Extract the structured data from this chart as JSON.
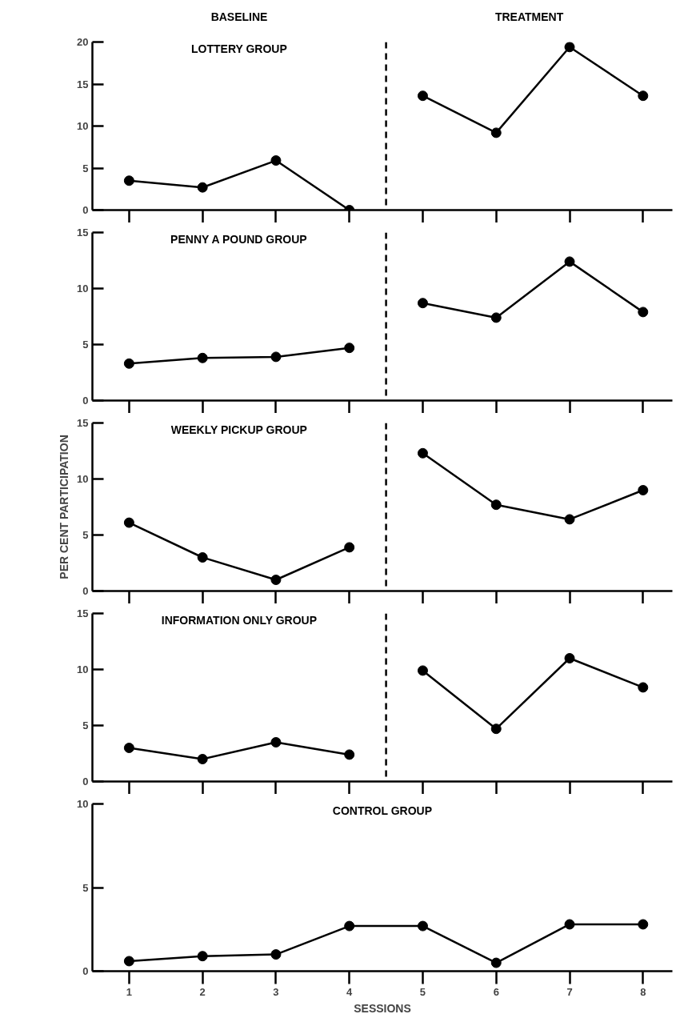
{
  "chart_data": [
    {
      "type": "line",
      "title": "LOTTERY GROUP",
      "annotations": [
        "BASELINE",
        "TREATMENT"
      ],
      "marker": "circle",
      "line_style": "solid",
      "tick_labels": "y",
      "xlim": [
        0.5,
        8.4
      ],
      "xticks": [
        {
          "value": 1,
          "label": null
        },
        {
          "value": 2,
          "label": null
        },
        {
          "value": 3,
          "label": null
        },
        {
          "value": 4,
          "label": null
        },
        {
          "value": 5,
          "label": null
        },
        {
          "value": 6,
          "label": null
        },
        {
          "value": 7,
          "label": null
        },
        {
          "value": 8,
          "label": null
        }
      ],
      "ylim": [
        0,
        20
      ],
      "yticks": [
        0,
        5,
        10,
        15,
        20
      ],
      "ref_lines": [
        {
          "axis": "x",
          "value": 4.5,
          "color": "#000000",
          "line_style": "dashed"
        }
      ],
      "series": [
        {
          "color": "#000000",
          "x": [
            1,
            2,
            3,
            4
          ],
          "values": [
            3.5,
            2.7,
            5.9,
            0
          ]
        },
        {
          "color": "#000000",
          "x": [
            5,
            6,
            7,
            8
          ],
          "values": [
            13.6,
            9.2,
            19.4,
            13.6
          ]
        }
      ]
    },
    {
      "type": "line",
      "title": "PENNY A POUND GROUP",
      "marker": "circle",
      "line_style": "solid",
      "tick_labels": "y",
      "xlim": [
        0.5,
        8.4
      ],
      "xticks": [
        {
          "value": 1,
          "label": null
        },
        {
          "value": 2,
          "label": null
        },
        {
          "value": 3,
          "label": null
        },
        {
          "value": 4,
          "label": null
        },
        {
          "value": 5,
          "label": null
        },
        {
          "value": 6,
          "label": null
        },
        {
          "value": 7,
          "label": null
        },
        {
          "value": 8,
          "label": null
        }
      ],
      "ylim": [
        0,
        15
      ],
      "yticks": [
        0,
        5,
        10,
        15
      ],
      "ref_lines": [
        {
          "axis": "x",
          "value": 4.5,
          "color": "#000000",
          "line_style": "dashed"
        }
      ],
      "series": [
        {
          "color": "#000000",
          "x": [
            1,
            2,
            3,
            4
          ],
          "values": [
            3.3,
            3.8,
            3.9,
            4.7
          ]
        },
        {
          "color": "#000000",
          "x": [
            5,
            6,
            7,
            8
          ],
          "values": [
            8.7,
            7.4,
            12.4,
            7.9
          ]
        }
      ]
    },
    {
      "type": "line",
      "title": "WEEKLY PICKUP GROUP",
      "ylabel": "PER CENT PARTICIPATION",
      "marker": "circle",
      "line_style": "solid",
      "tick_labels": "y",
      "xlim": [
        0.5,
        8.4
      ],
      "xticks": [
        {
          "value": 1,
          "label": null
        },
        {
          "value": 2,
          "label": null
        },
        {
          "value": 3,
          "label": null
        },
        {
          "value": 4,
          "label": null
        },
        {
          "value": 5,
          "label": null
        },
        {
          "value": 6,
          "label": null
        },
        {
          "value": 7,
          "label": null
        },
        {
          "value": 8,
          "label": null
        }
      ],
      "ylim": [
        0,
        15
      ],
      "yticks": [
        0,
        5,
        10,
        15
      ],
      "ref_lines": [
        {
          "axis": "x",
          "value": 4.5,
          "color": "#000000",
          "line_style": "dashed"
        }
      ],
      "series": [
        {
          "color": "#000000",
          "x": [
            1,
            2,
            3,
            4
          ],
          "values": [
            6.1,
            3.0,
            1.0,
            3.9
          ]
        },
        {
          "color": "#000000",
          "x": [
            5,
            6,
            7,
            8
          ],
          "values": [
            12.3,
            7.7,
            6.4,
            9.0
          ]
        }
      ]
    },
    {
      "type": "line",
      "title": "INFORMATION ONLY GROUP",
      "marker": "circle",
      "line_style": "solid",
      "tick_labels": "y",
      "xlim": [
        0.5,
        8.4
      ],
      "xticks": [
        {
          "value": 1,
          "label": null
        },
        {
          "value": 2,
          "label": null
        },
        {
          "value": 3,
          "label": null
        },
        {
          "value": 4,
          "label": null
        },
        {
          "value": 5,
          "label": null
        },
        {
          "value": 6,
          "label": null
        },
        {
          "value": 7,
          "label": null
        },
        {
          "value": 8,
          "label": null
        }
      ],
      "ylim": [
        0,
        15
      ],
      "yticks": [
        0,
        5,
        10,
        15
      ],
      "ref_lines": [
        {
          "axis": "x",
          "value": 4.5,
          "color": "#000000",
          "line_style": "dashed"
        }
      ],
      "series": [
        {
          "color": "#000000",
          "x": [
            1,
            2,
            3,
            4
          ],
          "values": [
            3.0,
            2.0,
            3.5,
            2.4
          ]
        },
        {
          "color": "#000000",
          "x": [
            5,
            6,
            7,
            8
          ],
          "values": [
            9.9,
            4.7,
            11.0,
            8.4
          ]
        }
      ]
    },
    {
      "type": "line",
      "title": "CONTROL GROUP",
      "xlabel": "SESSIONS",
      "marker": "circle",
      "line_style": "solid",
      "xlim": [
        0.5,
        8.4
      ],
      "xticks": [
        1,
        2,
        3,
        4,
        5,
        6,
        7,
        8
      ],
      "ylim": [
        0,
        10
      ],
      "yticks": [
        0,
        5,
        10
      ],
      "series": [
        {
          "color": "#000000",
          "x": [
            1,
            2,
            3,
            4,
            5,
            6,
            7,
            8
          ],
          "values": [
            0.6,
            0.9,
            1.0,
            2.7,
            2.7,
            0.5,
            2.8,
            2.8
          ]
        }
      ]
    }
  ]
}
